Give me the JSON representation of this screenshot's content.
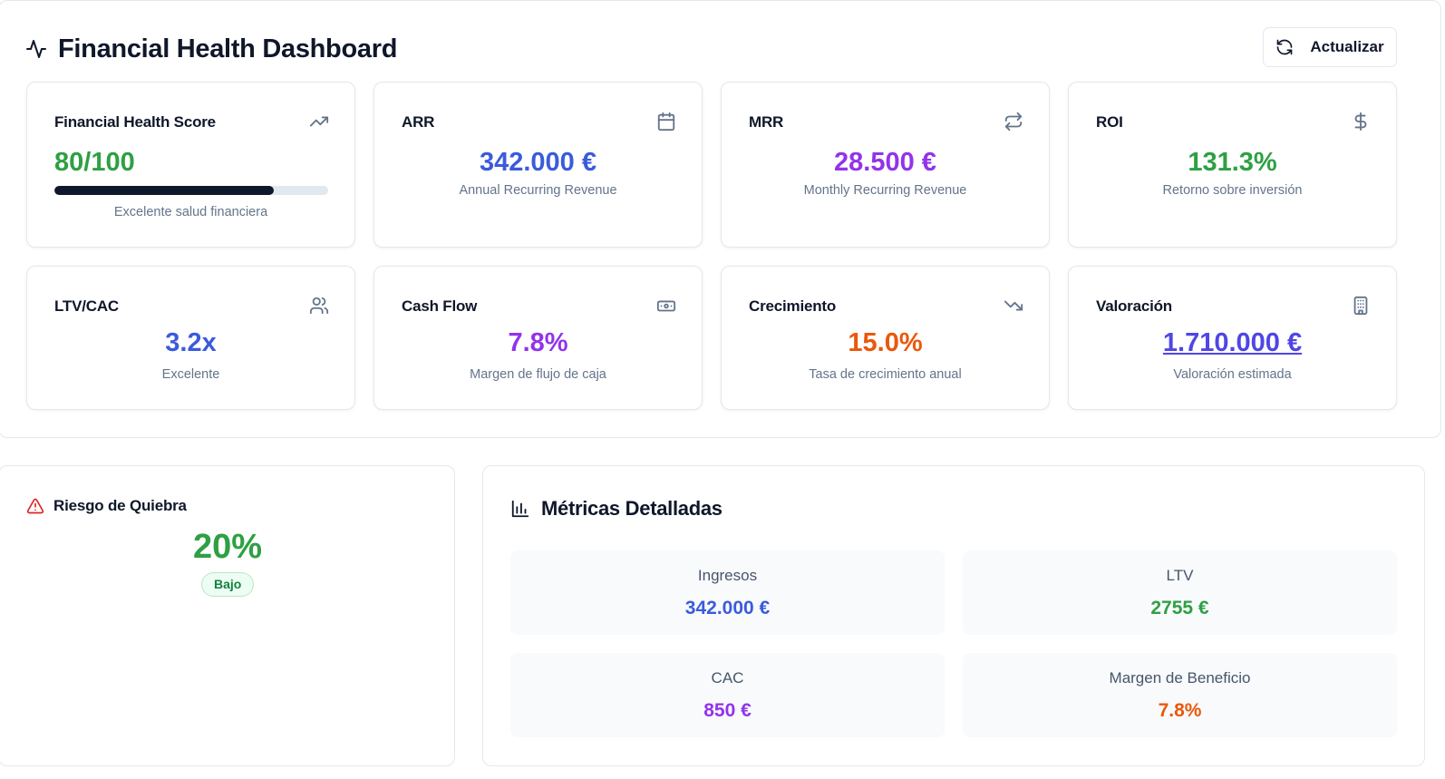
{
  "header": {
    "title": "Financial Health Dashboard",
    "refresh_label": "Actualizar",
    "title_icon": "activity-icon",
    "refresh_icon": "refresh-icon"
  },
  "cards": {
    "health": {
      "title": "Financial Health Score",
      "value": "80/100",
      "progress_fraction": 0.8,
      "subtitle": "Excelente salud financiera",
      "icon": "trending-up-icon",
      "color": "#2ea043"
    },
    "arr": {
      "title": "ARR",
      "value": "342.000 €",
      "subtitle": "Annual Recurring Revenue",
      "icon": "calendar-icon",
      "color": "#3b5bdb"
    },
    "mrr": {
      "title": "MRR",
      "value": "28.500 €",
      "subtitle": "Monthly Recurring Revenue",
      "icon": "repeat-icon",
      "color": "#9333ea"
    },
    "roi": {
      "title": "ROI",
      "value": "131.3%",
      "subtitle": "Retorno sobre inversión",
      "icon": "dollar-icon",
      "color": "#2ea043"
    },
    "ltvcac": {
      "title": "LTV/CAC",
      "value": "3.2x",
      "subtitle": "Excelente",
      "icon": "users-icon",
      "color": "#3b5bdb"
    },
    "cashflow": {
      "title": "Cash Flow",
      "value": "7.8%",
      "subtitle": "Margen de flujo de caja",
      "icon": "banknote-icon",
      "color": "#9333ea"
    },
    "growth": {
      "title": "Crecimiento",
      "value": "15.0%",
      "subtitle": "Tasa de crecimiento anual",
      "icon": "trending-down-icon",
      "color": "#ea580c"
    },
    "valuation": {
      "title": "Valoración",
      "value": "1.710.000 €",
      "subtitle": "Valoración estimada",
      "icon": "building-icon",
      "color": "#4f46e5"
    }
  },
  "risk": {
    "title": "Riesgo de Quiebra",
    "value": "20%",
    "badge": "Bajo",
    "icon": "alert-triangle-icon",
    "color": "#2ea043"
  },
  "metrics": {
    "title": "Métricas Detalladas",
    "icon": "bar-chart-icon",
    "items": [
      {
        "label": "Ingresos",
        "value": "342.000 €",
        "color": "#3b5bdb"
      },
      {
        "label": "LTV",
        "value": "2755 €",
        "color": "#2ea043"
      },
      {
        "label": "CAC",
        "value": "850 €",
        "color": "#9333ea"
      },
      {
        "label": "Margen de Beneficio",
        "value": "7.8%",
        "color": "#ea580c"
      }
    ]
  }
}
